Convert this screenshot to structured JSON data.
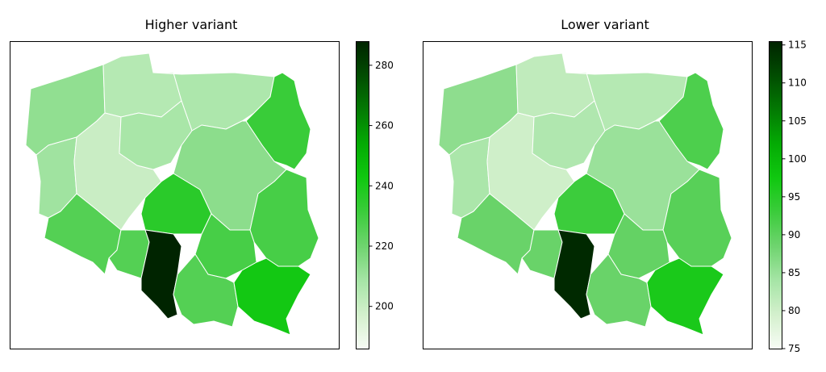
{
  "panels": [
    {
      "title": "Higher variant",
      "colorbar": {
        "min": 186,
        "max": 288,
        "ticks": [
          200,
          220,
          240,
          260,
          280
        ]
      },
      "regions": {
        "zachodniopomorskie": 213,
        "pomorskie": 205,
        "warminsko_mazurskie": 207,
        "podlaskie": 232,
        "lubuskie": 210,
        "wielkopolskie": 200,
        "kujawsko_pomorskie": 208,
        "mazowieckie": 214,
        "lodzkie": 236,
        "lubelskie": 229,
        "dolnoslaskie": 226,
        "opolskie": 226,
        "swietokrzyskie": 229,
        "slaskie": 288,
        "malopolskie": 226,
        "podkarpackie": 242
      }
    },
    {
      "title": "Lower variant",
      "colorbar": {
        "min": 75,
        "max": 115.5,
        "ticks": [
          75,
          80,
          85,
          90,
          95,
          100,
          105,
          110,
          115
        ]
      },
      "regions": {
        "zachodniopomorskie": 86,
        "pomorskie": 81.5,
        "warminsko_mazurskie": 82.5,
        "podlaskie": 91.5,
        "lubuskie": 83.5,
        "wielkopolskie": 80,
        "kujawsko_pomorskie": 83,
        "mazowieckie": 85,
        "lodzkie": 93,
        "lubelskie": 90.5,
        "dolnoslaskie": 89,
        "opolskie": 89,
        "swietokrzyskie": 89.5,
        "slaskie": 115,
        "malopolskie": 89,
        "podkarpackie": 96.5
      }
    }
  ],
  "colormap": {
    "stops": [
      "#f7fcf5",
      "#d4f0cd",
      "#a6e5a6",
      "#6fd46f",
      "#3ccc3c",
      "#10c810",
      "#04ab04",
      "#037a03",
      "#014d01",
      "#002400"
    ]
  }
}
